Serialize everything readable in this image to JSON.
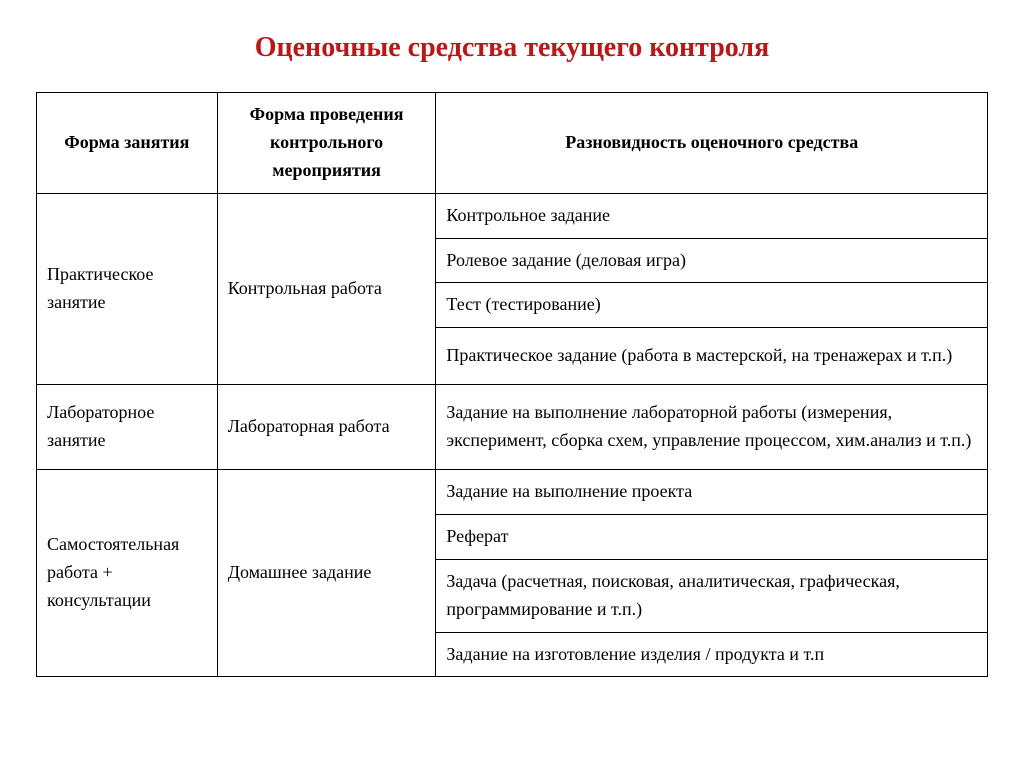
{
  "title": "Оценочные средства текущего контроля",
  "table": {
    "columns": [
      "Форма занятия",
      "Форма проведения контрольного мероприятия",
      "Разновидность оценочного средства"
    ],
    "col_widths_pct": [
      19,
      23,
      58
    ],
    "groups": [
      {
        "form": "Практическое занятие",
        "control": "Контрольная работа",
        "varieties": [
          "Контрольное задание",
          "Ролевое задание (деловая игра)",
          "Тест (тестирование)",
          "Практическое задание (работа в мастерской, на тренажерах и т.п.)"
        ]
      },
      {
        "form": "Лабораторное занятие",
        "control": "Лабораторная работа",
        "varieties": [
          "Задание на выполнение лабораторной работы (измерения, эксперимент, сборка схем, управление процессом, хим.анализ и т.п.)"
        ]
      },
      {
        "form": "Самостоятельная работа + консультации",
        "control": "Домашнее задание",
        "varieties": [
          "Задание на выполнение проекта",
          "Реферат",
          "Задача (расчетная,  поисковая, аналитическая, графическая, программирование и т.п.)",
          "Задание на изготовление изделия / продукта и т.п"
        ]
      }
    ],
    "border_color": "#000000",
    "title_color": "#b81818",
    "background_color": "#ffffff",
    "font_family": "Times New Roman",
    "header_fontsize": 18,
    "cell_fontsize": 18,
    "title_fontsize": 28
  }
}
